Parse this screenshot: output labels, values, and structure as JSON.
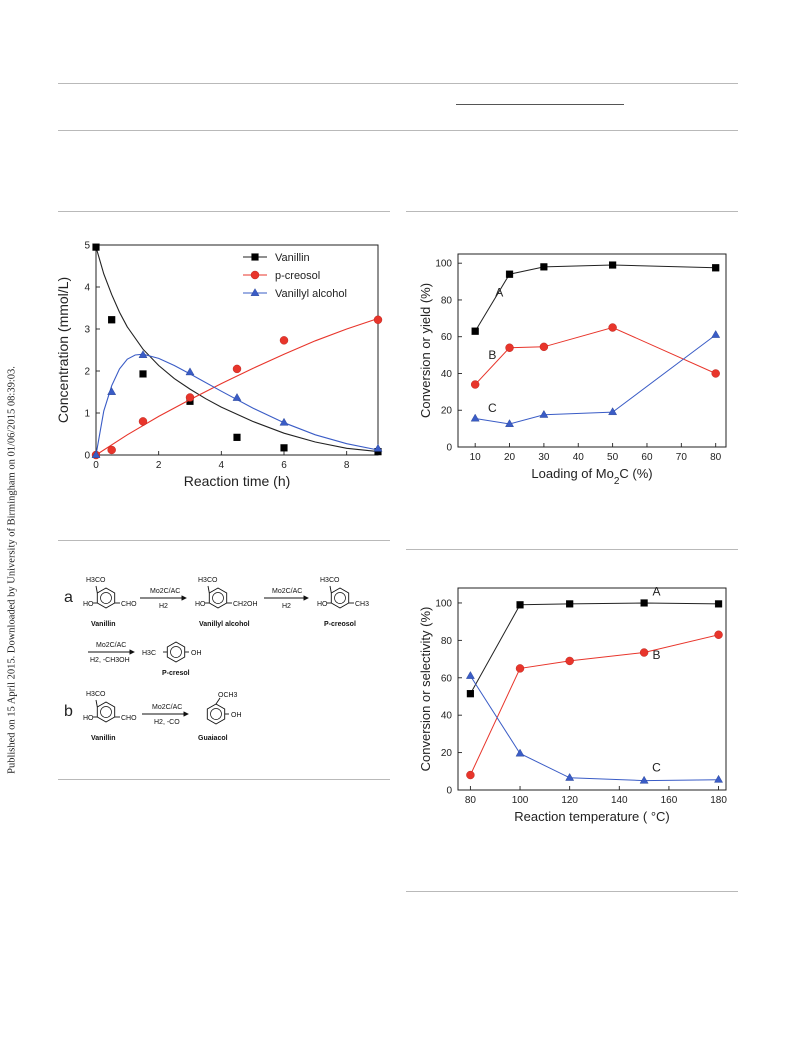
{
  "sidebar_text": "Published on 15 April 2015. Downloaded by University of Birmingham on 01/06/2015 08:39:03.",
  "chart_data": [
    {
      "type": "scatter",
      "xlabel": "Reaction time (h)",
      "ylabel": "Concentration (mmol/L)",
      "xlim": [
        0,
        9
      ],
      "ylim": [
        0,
        5
      ],
      "xticks": [
        0,
        2,
        4,
        6,
        8
      ],
      "yticks": [
        0,
        1,
        2,
        3,
        4,
        5
      ],
      "legend_position": "top-right",
      "series": [
        {
          "name": "Vanillin",
          "marker": "square",
          "color": "#000000",
          "x": [
            0,
            0.5,
            1.5,
            3,
            4.5,
            6,
            9
          ],
          "y": [
            4.95,
            3.22,
            1.93,
            1.28,
            0.42,
            0.17,
            0.08
          ],
          "fit_x": [
            0,
            0.25,
            0.5,
            0.75,
            1,
            1.5,
            2,
            2.5,
            3,
            3.5,
            4,
            5,
            6,
            7,
            8,
            9
          ],
          "fit_y": [
            4.95,
            4.31,
            3.82,
            3.4,
            3.05,
            2.52,
            2.13,
            1.82,
            1.57,
            1.34,
            1.14,
            0.8,
            0.52,
            0.31,
            0.16,
            0.08
          ]
        },
        {
          "name": "p-creosol",
          "marker": "circle",
          "color": "#e8352b",
          "x": [
            0,
            0.5,
            1.5,
            3,
            4.5,
            6,
            9
          ],
          "y": [
            0,
            0.12,
            0.8,
            1.37,
            2.05,
            2.73,
            3.22
          ],
          "fit_x": [
            0,
            1,
            2,
            3,
            4,
            5,
            6,
            7,
            8,
            9
          ],
          "fit_y": [
            0,
            0.48,
            0.92,
            1.32,
            1.7,
            2.06,
            2.4,
            2.72,
            3.0,
            3.25
          ]
        },
        {
          "name": "Vanillyl alcohol",
          "marker": "triangle",
          "color": "#3a5cc6",
          "x": [
            0,
            0.5,
            1.5,
            3,
            4.5,
            6,
            9
          ],
          "y": [
            0,
            1.5,
            2.38,
            1.97,
            1.36,
            0.77,
            0.15
          ],
          "fit_x": [
            0,
            0.25,
            0.5,
            0.75,
            1,
            1.25,
            1.5,
            2,
            2.5,
            3,
            4,
            5,
            6,
            7,
            8,
            9
          ],
          "fit_y": [
            0,
            1.05,
            1.65,
            2.05,
            2.28,
            2.38,
            2.4,
            2.3,
            2.13,
            1.93,
            1.52,
            1.12,
            0.77,
            0.48,
            0.27,
            0.12
          ]
        }
      ]
    },
    {
      "type": "line",
      "xlabel": "Loading of Mo",
      "xlabel_sub": "2",
      "xlabel_suffix": "C (%)",
      "ylabel": "Conversion or yield (%)",
      "xlim": [
        5,
        83
      ],
      "ylim": [
        0,
        105
      ],
      "xticks": [
        10,
        20,
        30,
        40,
        50,
        60,
        70,
        80
      ],
      "yticks": [
        0,
        20,
        40,
        60,
        80,
        100
      ],
      "annotations": [
        {
          "text": "A",
          "x": 17,
          "y": 82
        },
        {
          "text": "B",
          "x": 15,
          "y": 48
        },
        {
          "text": "C",
          "x": 15,
          "y": 19
        }
      ],
      "series": [
        {
          "name": "",
          "marker": "square",
          "color": "#000000",
          "x": [
            10,
            20,
            30,
            50,
            80
          ],
          "y": [
            63,
            94,
            98,
            99,
            97.5
          ]
        },
        {
          "name": "",
          "marker": "circle",
          "color": "#e8352b",
          "x": [
            10,
            20,
            30,
            50,
            80
          ],
          "y": [
            34,
            54,
            54.5,
            65,
            40
          ]
        },
        {
          "name": "",
          "marker": "triangle",
          "color": "#3a5cc6",
          "x": [
            10,
            20,
            30,
            50,
            80
          ],
          "y": [
            15.5,
            12.5,
            17.5,
            19,
            61
          ]
        }
      ]
    },
    {
      "type": "line",
      "xlabel": "Reaction temperature ( °C)",
      "ylabel": "Conversion or selectivity (%)",
      "xlim": [
        75,
        183
      ],
      "ylim": [
        0,
        108
      ],
      "xticks": [
        80,
        100,
        120,
        140,
        160,
        180
      ],
      "yticks": [
        0,
        20,
        40,
        60,
        80,
        100
      ],
      "annotations": [
        {
          "text": "A",
          "x": 155,
          "y": 104
        },
        {
          "text": "B",
          "x": 155,
          "y": 70
        },
        {
          "text": "C",
          "x": 155,
          "y": 10
        }
      ],
      "series": [
        {
          "name": "",
          "marker": "square",
          "color": "#000000",
          "x": [
            80,
            100,
            120,
            150,
            180
          ],
          "y": [
            51.5,
            99,
            99.5,
            100,
            99.5
          ]
        },
        {
          "name": "",
          "marker": "circle",
          "color": "#e8352b",
          "x": [
            80,
            100,
            120,
            150,
            180
          ],
          "y": [
            8,
            65,
            69,
            73.5,
            83
          ]
        },
        {
          "name": "",
          "marker": "triangle",
          "color": "#3a5cc6",
          "x": [
            80,
            100,
            120,
            150,
            180
          ],
          "y": [
            61,
            19.5,
            6.5,
            5,
            5.5
          ]
        }
      ]
    }
  ],
  "scheme": {
    "a_label": "a",
    "b_label": "b",
    "reagent": "Mo2C/AC",
    "h2": "H2",
    "h2_meoh": "H2, -CH3OH",
    "h2_co": "H2, -CO",
    "vanillin": "Vanillin",
    "vanillyl_alcohol": "Vanillyl alcohol",
    "p_creosol": "P-creosol",
    "p_cresol": "P-cresol",
    "guaiacol": "Guaiacol",
    "h3co": "H3CO",
    "ho": "HO",
    "cho": "CHO",
    "ch2oh": "CH2OH",
    "ch3": "CH3",
    "h3c": "H3C",
    "oh": "OH",
    "och3": "OCH3"
  }
}
